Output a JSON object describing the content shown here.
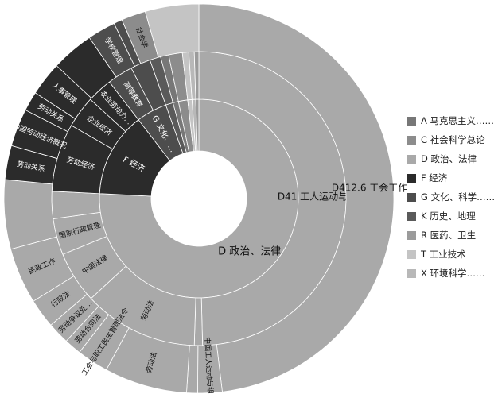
{
  "colors": {
    "A": "#777777",
    "C": "#8c8c8c",
    "D": "#a9a9a9",
    "F": "#2b2b2b",
    "G": "#4d4d4d",
    "K": "#5a5a5a",
    "R": "#9b9b9b",
    "T": "#c4c4c4",
    "X": "#b8b8b8"
  },
  "legend": [
    {
      "key": "A",
      "label": "A 马克思主义……"
    },
    {
      "key": "C",
      "label": "C 社会科学总论"
    },
    {
      "key": "D",
      "label": "D 政治、法律"
    },
    {
      "key": "F",
      "label": "F 经济"
    },
    {
      "key": "G",
      "label": "G 文化、科学……"
    },
    {
      "key": "K",
      "label": "K 历史、地理"
    },
    {
      "key": "R",
      "label": "R 医药、卫生"
    },
    {
      "key": "T",
      "label": "T 工业技术"
    },
    {
      "key": "X",
      "label": "X 环境科学……"
    }
  ],
  "chart_data": {
    "type": "sunburst",
    "legend_position": "right",
    "inner": [
      {
        "key": "D",
        "label": "D 政治、法律",
        "value": 75.8
      },
      {
        "key": "F",
        "label": "F 经济",
        "value": 13.8
      },
      {
        "key": "G",
        "label": "G 文化、…",
        "value": 5.0
      },
      {
        "key": "K",
        "label": "",
        "value": 1.2
      },
      {
        "key": "A",
        "label": "",
        "value": 0.9
      },
      {
        "key": "C",
        "label": "",
        "value": 1.5
      },
      {
        "key": "T",
        "label": "",
        "value": 0.7
      },
      {
        "key": "X",
        "label": "",
        "value": 0.6
      },
      {
        "key": "R",
        "label": "",
        "value": 0.5
      }
    ],
    "middle": [
      {
        "parent": "D",
        "label": "D41 工人运动与组织",
        "value": 49.6,
        "color": "D"
      },
      {
        "parent": "D",
        "label": "",
        "value": 0.9,
        "color": "D"
      },
      {
        "parent": "D",
        "label": "劳动法",
        "value": 12.6,
        "color": "D"
      },
      {
        "parent": "D",
        "label": "中国法律",
        "value": 5.7,
        "color": "D"
      },
      {
        "parent": "D",
        "label": "国家行政管理",
        "value": 4.0,
        "color": "D"
      },
      {
        "parent": "D",
        "label": "",
        "value": 3.0,
        "color": "D"
      },
      {
        "parent": "F",
        "label": "劳动经济",
        "value": 7.5,
        "color": "F"
      },
      {
        "parent": "F",
        "label": "企业经济",
        "value": 3.5,
        "color": "F"
      },
      {
        "parent": "F",
        "label": "农业劳动力…",
        "value": 2.8,
        "color": "F"
      },
      {
        "parent": "G",
        "label": "高等教育",
        "value": 2.8,
        "color": "G"
      },
      {
        "parent": "G",
        "label": "",
        "value": 2.2,
        "color": "G"
      },
      {
        "parent": "K",
        "label": "",
        "value": 1.2,
        "color": "K"
      },
      {
        "parent": "A",
        "label": "",
        "value": 0.9,
        "color": "A"
      },
      {
        "parent": "C",
        "label": "",
        "value": 1.5,
        "color": "C"
      },
      {
        "parent": "T",
        "label": "",
        "value": 0.7,
        "color": "T"
      },
      {
        "parent": "X",
        "label": "",
        "value": 0.6,
        "color": "X"
      },
      {
        "parent": "R",
        "label": "",
        "value": 0.5,
        "color": "R"
      }
    ],
    "outer": [
      {
        "label": "D412.6 工会工作",
        "value": 47.6,
        "color": "D"
      },
      {
        "label": "中国工人运动与组织",
        "value": 2.0,
        "color": "D"
      },
      {
        "label": "",
        "value": 0.9,
        "color": "D"
      },
      {
        "label": "劳动法",
        "value": 6.8,
        "color": "D"
      },
      {
        "label": "工会与职工民主管理法令",
        "value": 2.6,
        "color": "D"
      },
      {
        "label": "劳动合同法",
        "value": 1.4,
        "color": "D"
      },
      {
        "label": "劳动争议处…",
        "value": 1.8,
        "color": "D"
      },
      {
        "label": "行政法",
        "value": 2.4,
        "color": "D"
      },
      {
        "label": "民政工作",
        "value": 4.6,
        "color": "D"
      },
      {
        "label": "",
        "value": 5.7,
        "color": "D"
      },
      {
        "label": "劳动关系",
        "value": 2.8,
        "color": "F"
      },
      {
        "label": "中国劳动经济概况",
        "value": 3.1,
        "color": "F"
      },
      {
        "label": "劳动关系",
        "value": 1.6,
        "color": "F"
      },
      {
        "label": "人事管理",
        "value": 2.8,
        "color": "F"
      },
      {
        "label": "",
        "value": 3.5,
        "color": "F"
      },
      {
        "label": "学校管理",
        "value": 2.3,
        "color": "G"
      },
      {
        "label": "",
        "value": 0.7,
        "color": "G"
      },
      {
        "label": "社会学",
        "value": 2.0,
        "color": "C"
      },
      {
        "label": "",
        "value": 4.4,
        "color": "T"
      }
    ]
  }
}
